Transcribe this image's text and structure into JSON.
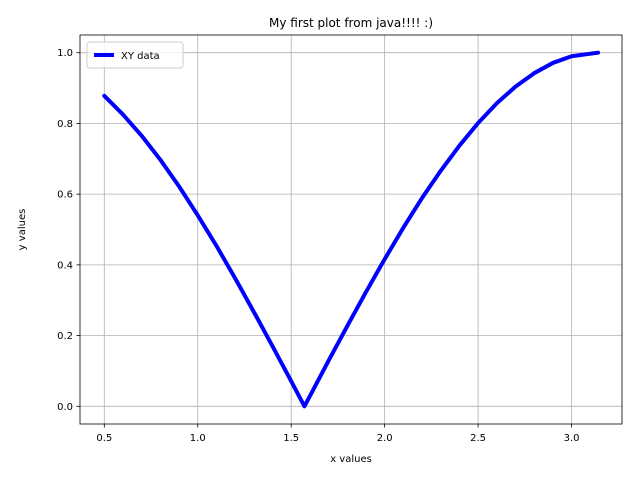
{
  "chart_data": {
    "type": "line",
    "title": "My first plot from java!!!! :)",
    "xlabel": "x values",
    "ylabel": "y values",
    "xlim": [
      0.37,
      3.27
    ],
    "ylim": [
      -0.05,
      1.05
    ],
    "xticks": [
      0.5,
      1.0,
      1.5,
      2.0,
      2.5,
      3.0
    ],
    "xtick_labels": [
      "0.5",
      "1.0",
      "1.5",
      "2.0",
      "2.5",
      "3.0"
    ],
    "yticks": [
      0.0,
      0.2,
      0.4,
      0.6,
      0.8,
      1.0
    ],
    "ytick_labels": [
      "0.0",
      "0.2",
      "0.4",
      "0.6",
      "0.8",
      "1.0"
    ],
    "grid": true,
    "legend_placement": "upper-left",
    "series": [
      {
        "name": "XY data",
        "color": "#0000ff",
        "x": [
          0.5,
          0.6,
          0.7,
          0.8,
          0.9,
          1.0,
          1.1,
          1.2,
          1.3,
          1.4,
          1.5,
          1.5708,
          1.6,
          1.7,
          1.8,
          1.9,
          2.0,
          2.1,
          2.2,
          2.3,
          2.4,
          2.5,
          2.6,
          2.7,
          2.8,
          2.9,
          3.0,
          3.1416
        ],
        "y": [
          0.878,
          0.825,
          0.765,
          0.697,
          0.622,
          0.54,
          0.454,
          0.362,
          0.267,
          0.17,
          0.071,
          0.0,
          0.029,
          0.129,
          0.227,
          0.323,
          0.416,
          0.505,
          0.589,
          0.666,
          0.737,
          0.801,
          0.857,
          0.904,
          0.942,
          0.971,
          0.99,
          1.0
        ]
      }
    ]
  }
}
